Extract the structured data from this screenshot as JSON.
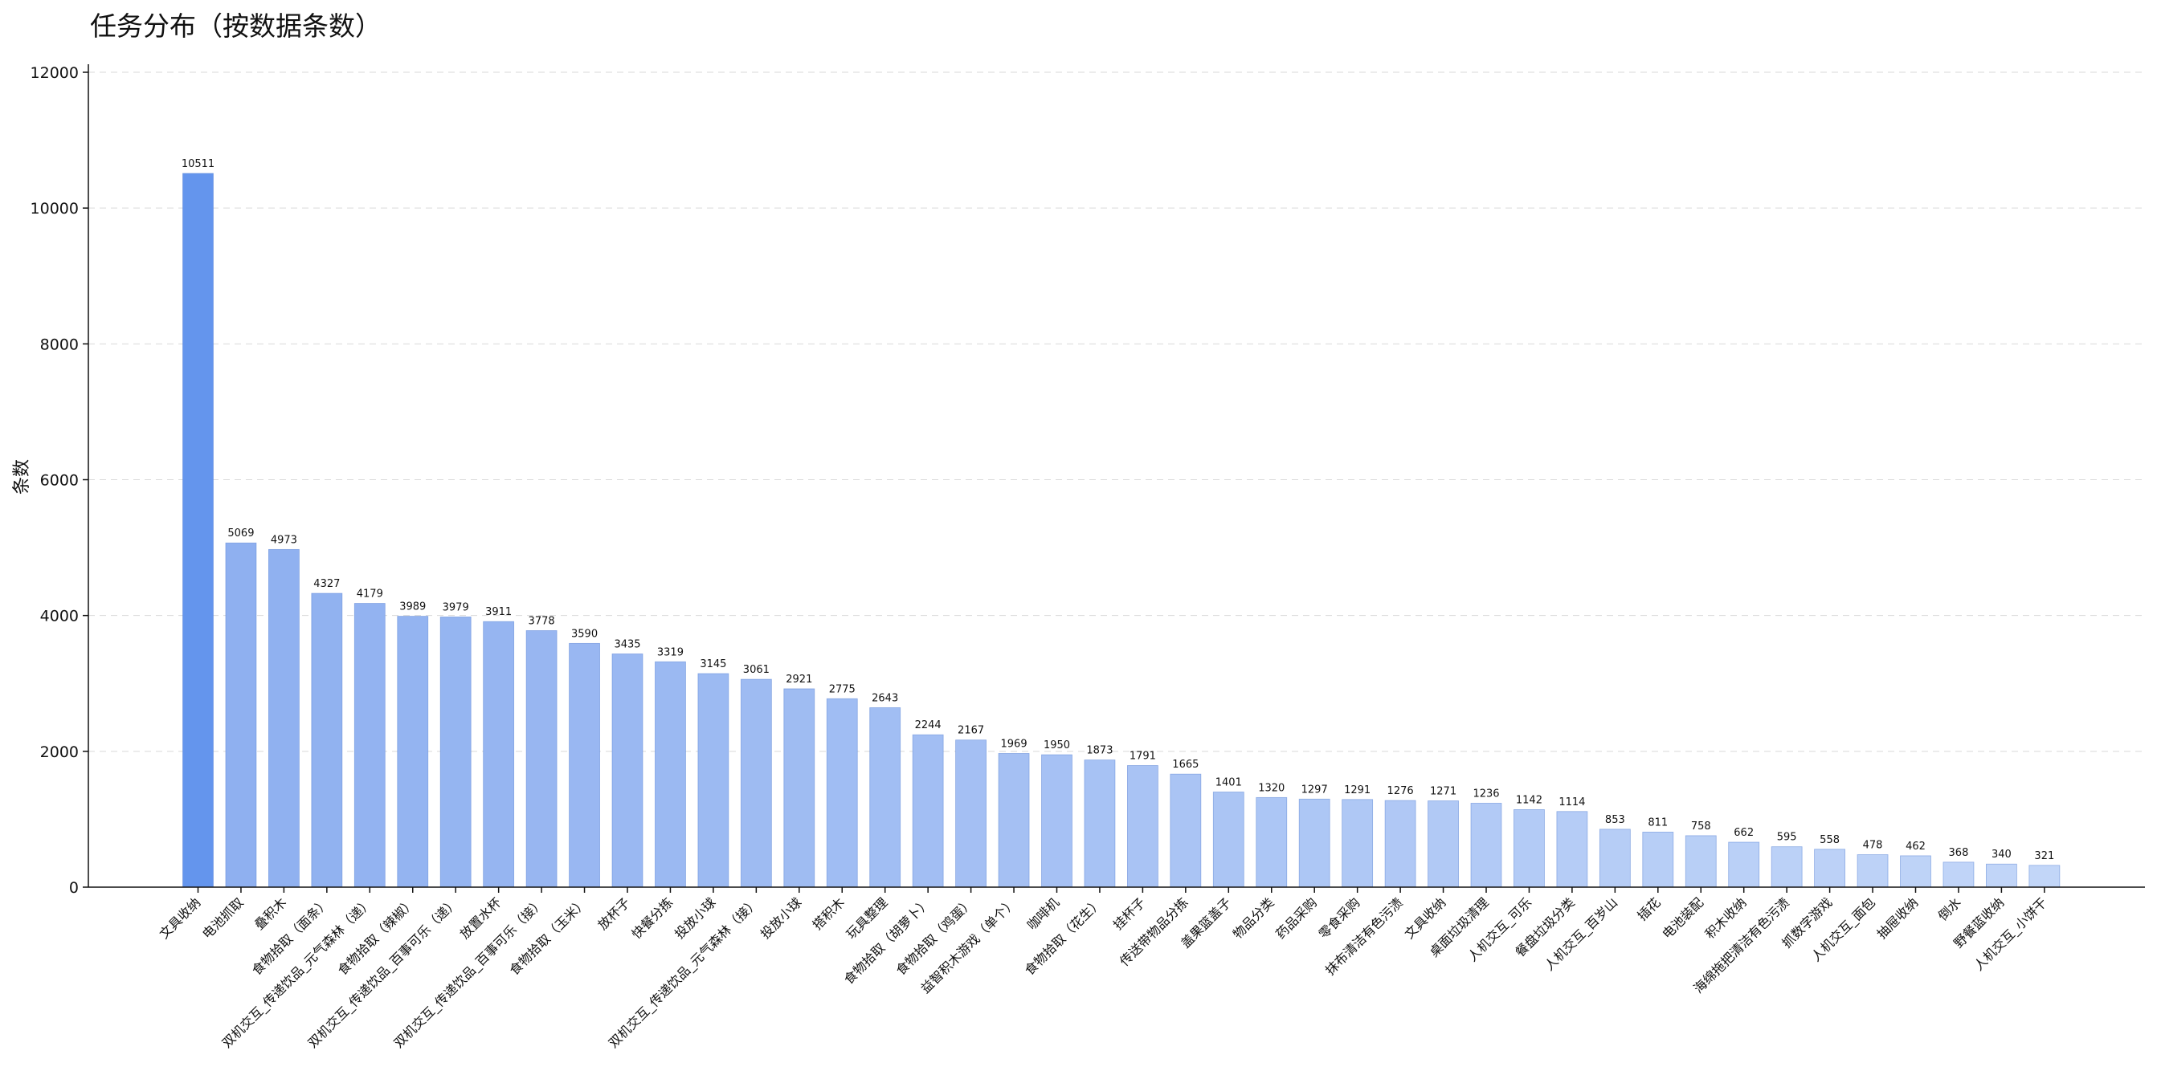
{
  "chart_data": {
    "type": "bar",
    "title": "任务分布（按数据条数）",
    "xlabel": "",
    "ylabel": "条数",
    "ylim": [
      0,
      12000
    ],
    "yticks": [
      0,
      2000,
      4000,
      6000,
      8000,
      10000,
      12000
    ],
    "grid": "horizontal dashed",
    "legend": "none",
    "colors": {
      "highlight": "#6495ed",
      "gradient_start": "#8fb0f0",
      "gradient_end": "#c2d6f8",
      "edge": "#5b86d6"
    },
    "categories": [
      "文具收纳",
      "电池抓取",
      "叠积木",
      "食物拾取（面条）",
      "双机交互_传递饮品_元气森林（递）",
      "食物拾取（辣椒）",
      "双机交互_传递饮品_百事可乐（递）",
      "放置水杯",
      "双机交互_传递饮品_百事可乐（接）",
      "食物拾取（玉米）",
      "放杯子",
      "快餐分拣",
      "投放小球",
      "双机交互_传递饮品_元气森林（接）",
      "投放小球",
      "搭积木",
      "玩具整理",
      "食物拾取（胡萝卜）",
      "食物拾取（鸡蛋）",
      "益智积木游戏（单个）",
      "咖啡机",
      "食物拾取（花生）",
      "挂杯子",
      "传送带物品分拣",
      "盖果篮盖子",
      "物品分类",
      "药品采购",
      "零食采购",
      "抹布清洁有色污渍",
      "文具收纳",
      "桌面垃圾清理",
      "人机交互_可乐",
      "餐盘垃圾分类",
      "人机交互_百岁山",
      "插花",
      "电池装配",
      "积木收纳",
      "海绵拖把清洁有色污渍",
      "抓数字游戏",
      "人机交互_面包",
      "抽屉收纳",
      "倒水",
      "野餐蓝收纳",
      "人机交互_小饼干"
    ],
    "values": [
      10511,
      5069,
      4973,
      4327,
      4179,
      3989,
      3979,
      3911,
      3778,
      3590,
      3435,
      3319,
      3145,
      3061,
      2921,
      2775,
      2643,
      2244,
      2167,
      1969,
      1950,
      1873,
      1791,
      1665,
      1401,
      1320,
      1297,
      1291,
      1276,
      1271,
      1236,
      1142,
      1114,
      853,
      811,
      758,
      662,
      595,
      558,
      478,
      462,
      368,
      340,
      321
    ]
  }
}
